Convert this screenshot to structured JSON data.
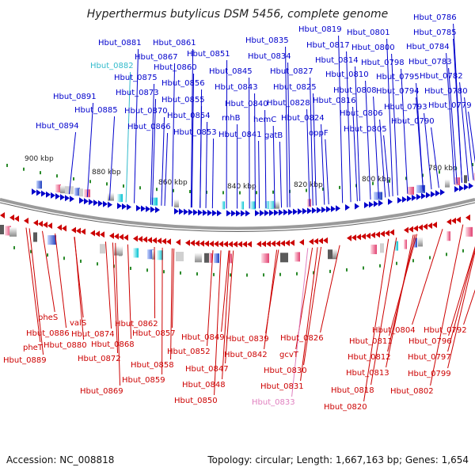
{
  "title": "Hyperthermus butylicus DSM 5456, complete genome",
  "footer": {
    "accession": "Accession: NC_008818",
    "summary": "Topology: circular; Length: 1,667,163 bp; Genes: 1,654"
  },
  "colors": {
    "forward": "#0000cc",
    "reverse": "#cc0000",
    "highlight_forward": "#33bbcc",
    "highlight_reverse": "#e07fbf",
    "backbone": "#777777",
    "tick": "#2a8a2a"
  },
  "scale_ticks": [
    "900 kbp",
    "880 kbp",
    "860 kbp",
    "840 kbp",
    "820 kbp",
    "800 kbp",
    "780 kbp"
  ],
  "forward_labels": [
    "Hbut_0881",
    "Hbut_0882",
    "Hbut_0891",
    "Hbut_0885",
    "Hbut_0894",
    "Hbut_0861",
    "Hbut_0867",
    "Hbut_0875",
    "Hbut_0860",
    "Hbut_0873",
    "Hbut_0856",
    "Hbut_0855",
    "Hbut_0870",
    "Hbut_0854",
    "Hbut_0866",
    "Hbut_0853",
    "Hbut_0851",
    "Hbut_0845",
    "Hbut_0843",
    "Hbut_0840",
    "rnhB",
    "Hbut_0841",
    "Hbut_0835",
    "Hbut_0834",
    "Hbut_0827",
    "Hbut_0825",
    "Hbut_0828",
    "hemC",
    "gatB",
    "Hbut_0824",
    "Hbut_0819",
    "Hbut_0817",
    "Hbut_0814",
    "Hbut_0810",
    "Hbut_0816",
    "oppF",
    "Hbut_0801",
    "Hbut_0800",
    "Hbut_0798",
    "Hbut_0808",
    "Hbut_0806",
    "Hbut_0805",
    "Hbut_0795",
    "Hbut_0794",
    "Hbut_0793",
    "Hbut_0790",
    "Hbut_0786",
    "Hbut_0785",
    "Hbut_0784",
    "Hbut_0783",
    "Hbut_0782",
    "Hbut_0780",
    "Hbut_0779"
  ],
  "reverse_labels": [
    "pheS",
    "Hbut_0886",
    "pheT",
    "Hbut_0889",
    "valS",
    "Hbut_0880",
    "Hbut_0874",
    "Hbut_0868",
    "Hbut_0872",
    "Hbut_0869",
    "Hbut_0862",
    "Hbut_0857",
    "Hbut_0858",
    "Hbut_0859",
    "Hbut_0849",
    "Hbut_0852",
    "Hbut_0847",
    "Hbut_0848",
    "Hbut_0850",
    "Hbut_0842",
    "Hbut_0839",
    "Hbut_0826",
    "gcvT",
    "Hbut_0830",
    "Hbut_0831",
    "Hbut_0833",
    "Hbut_0818",
    "Hbut_0820",
    "Hbut_0811",
    "Hbut_0812",
    "Hbut_0813",
    "Hbut_0804",
    "Hbut_0796",
    "Hbut_0797",
    "Hbut_0799",
    "Hbut_0802",
    "Hbut_0792"
  ]
}
